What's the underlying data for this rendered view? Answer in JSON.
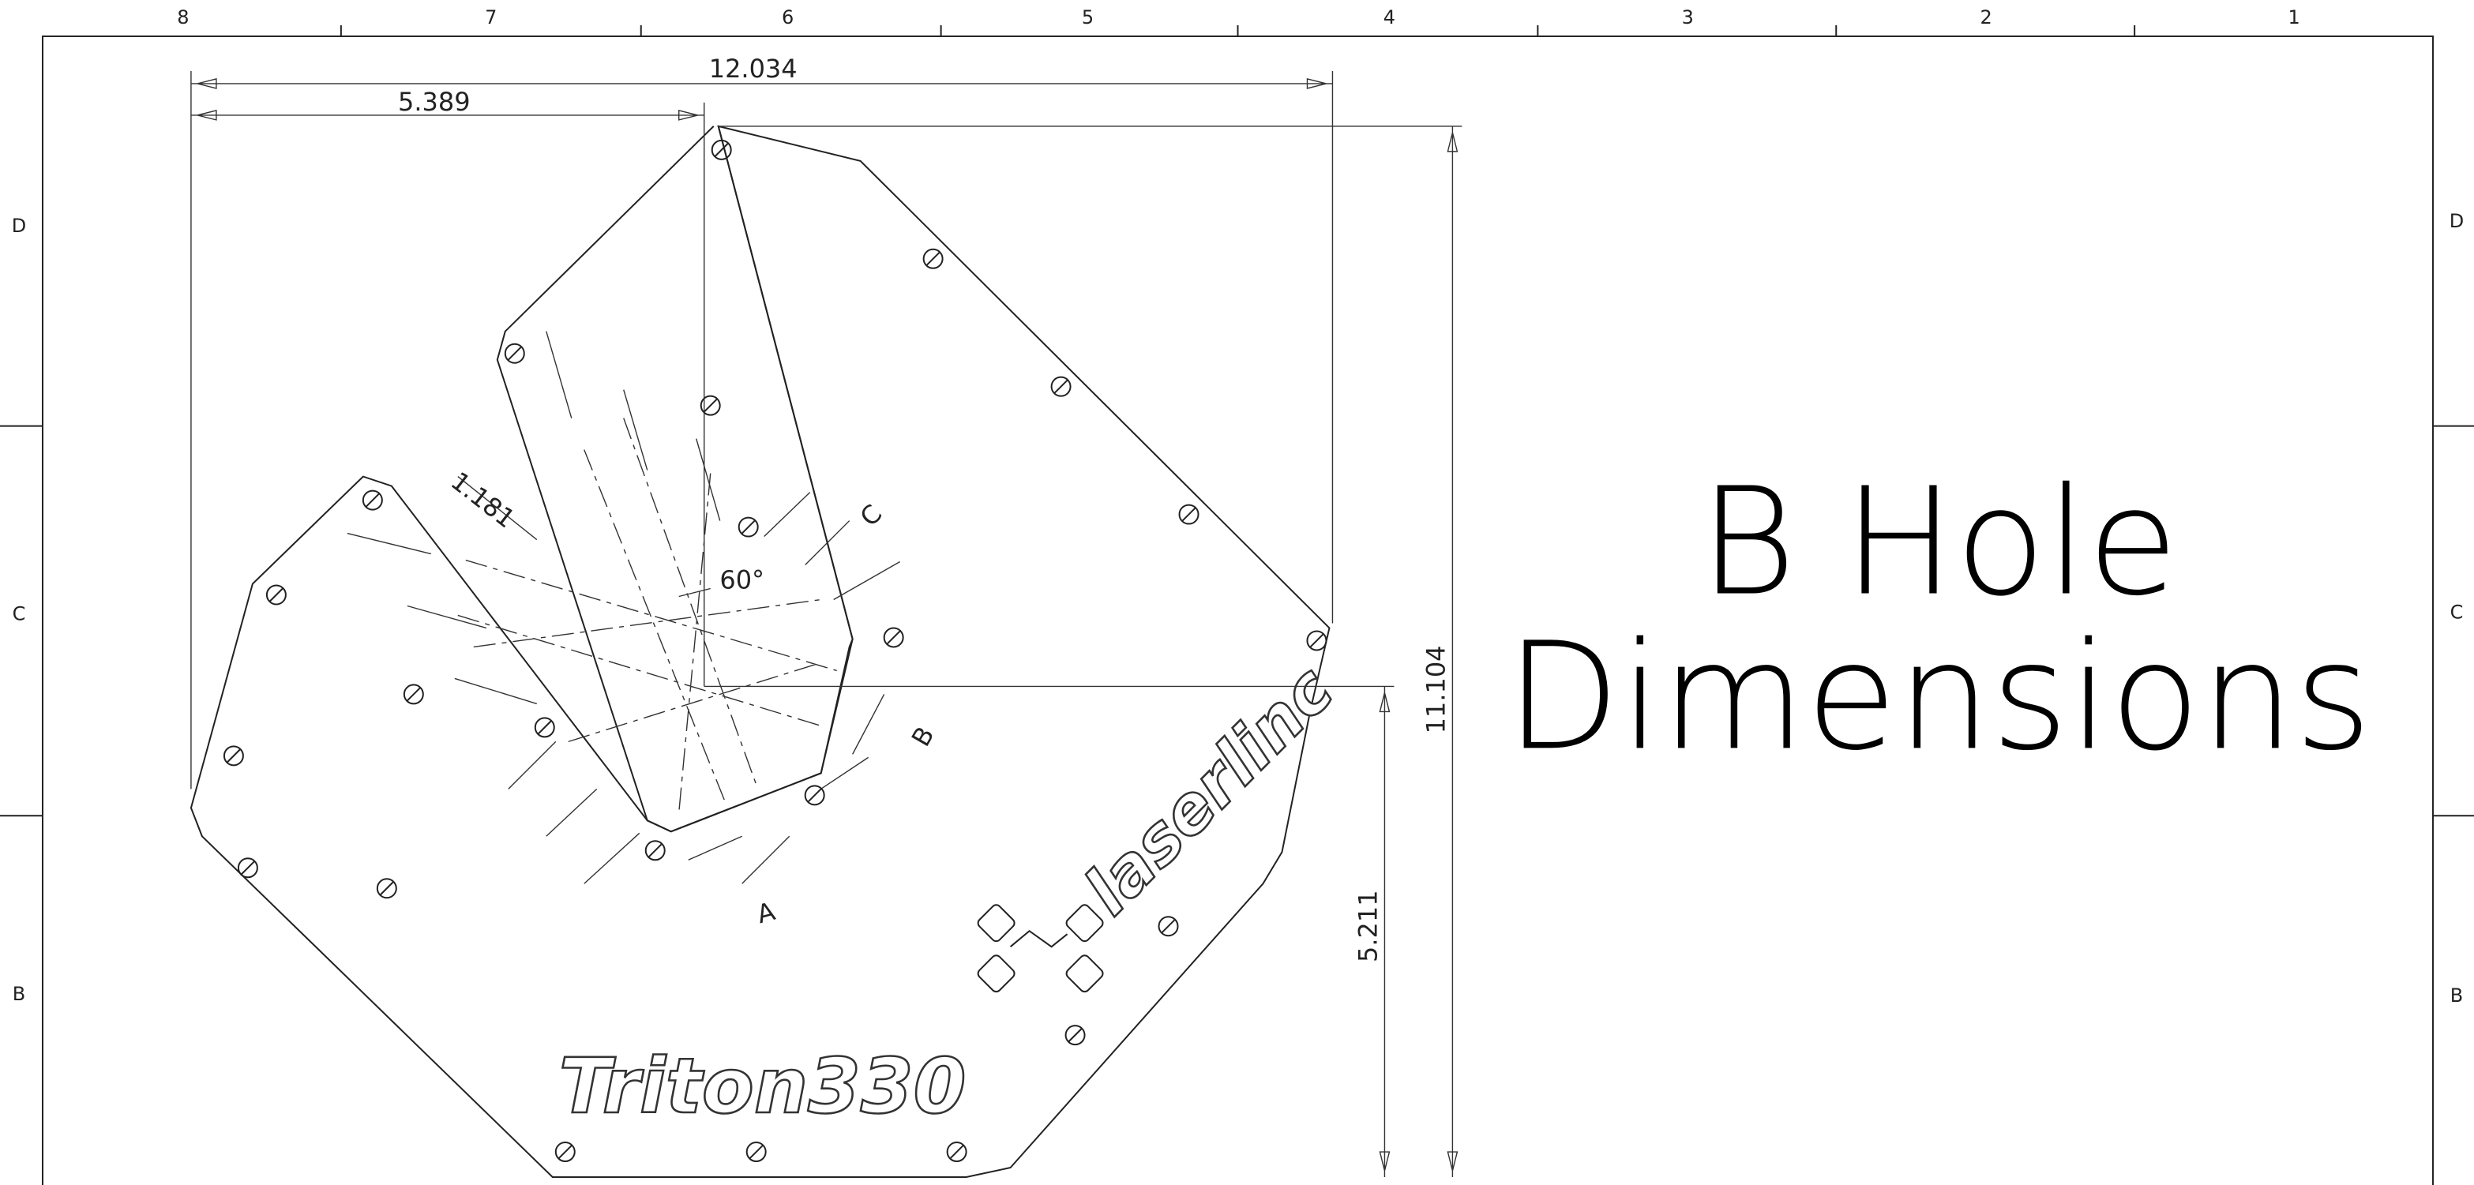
{
  "frame": {
    "columns": [
      "8",
      "7",
      "6",
      "5",
      "4",
      "3",
      "2",
      "1"
    ],
    "rows": [
      "D",
      "C",
      "B"
    ]
  },
  "dimensions": {
    "overall_width": "12.034",
    "hole_offset_x": "5.389",
    "overall_height": "11.104",
    "hole_offset_y": "5.211",
    "slot_length": "1.181",
    "angle": "60°"
  },
  "part_labels": {
    "slot_a": "A",
    "slot_b": "B",
    "slot_c": "C"
  },
  "engraving": {
    "model": "Triton330",
    "brand": "laserlinc"
  },
  "title": {
    "line1": "B Hole",
    "line2": "Dimensions"
  }
}
